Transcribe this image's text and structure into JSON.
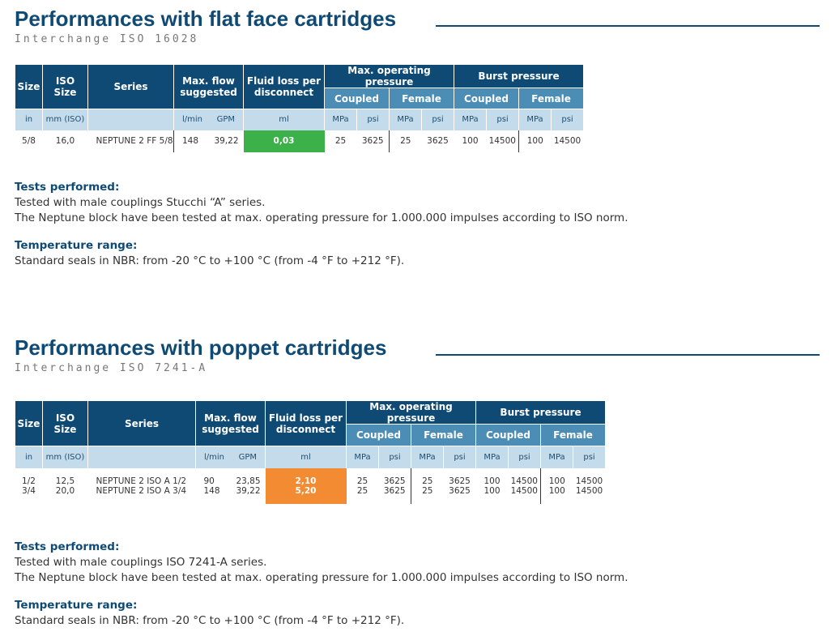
{
  "colors": {
    "brand": "#0e4a74",
    "subheader": "#4b8db5",
    "unit_row": "#c4dbeb",
    "green": "#3cb14a",
    "orange": "#f28b32"
  },
  "headers": {
    "size": "Size",
    "iso_size": "ISO Size",
    "series": "Series",
    "max_flow": "Max. flow suggested",
    "fluid_loss": "Fluid loss per disconnect",
    "max_op": "Max. operating pressure",
    "burst": "Burst pressure",
    "coupled": "Coupled",
    "female": "Female"
  },
  "units": {
    "in": "in",
    "mm": "mm (ISO)",
    "lmin": "l/min",
    "gpm": "GPM",
    "ml": "ml",
    "mpa": "MPa",
    "psi": "psi"
  },
  "section1": {
    "title": "Performances with flat face cartridges",
    "subtitle": "Interchange ISO 16028",
    "rows": [
      {
        "size": "5/8",
        "iso": "16,0",
        "series": "NEPTUNE 2 FF 5/8",
        "lmin": "148",
        "gpm": "39,22",
        "fluid": "0,03",
        "op_c_mpa": "25",
        "op_c_psi": "3625",
        "op_f_mpa": "25",
        "op_f_psi": "3625",
        "b_c_mpa": "100",
        "b_c_psi": "14500",
        "b_f_mpa": "100",
        "b_f_psi": "14500"
      }
    ],
    "tests_heading": "Tests performed:",
    "tests_line1": "Tested with male couplings Stucchi “A” series.",
    "tests_line2": "The Neptune block have been tested at max. operating pressure for 1.000.000 impulses according to ISO norm.",
    "temp_heading": "Temperature range:",
    "temp_line": "Standard seals in NBR: from -20 °C to +100 °C (from -4 °F to +212 °F)."
  },
  "section2": {
    "title": "Performances with poppet cartridges",
    "subtitle": "Interchange ISO 7241-A",
    "rows": [
      {
        "size": "1/2",
        "iso": "12,5",
        "series": "NEPTUNE 2 ISO A 1/2",
        "lmin": "90",
        "gpm": "23,85",
        "fluid": "2,10",
        "op_c_mpa": "25",
        "op_c_psi": "3625",
        "op_f_mpa": "25",
        "op_f_psi": "3625",
        "b_c_mpa": "100",
        "b_c_psi": "14500",
        "b_f_mpa": "100",
        "b_f_psi": "14500"
      },
      {
        "size": "3/4",
        "iso": "20,0",
        "series": "NEPTUNE 2 ISO A 3/4",
        "lmin": "148",
        "gpm": "39,22",
        "fluid": "5,20",
        "op_c_mpa": "25",
        "op_c_psi": "3625",
        "op_f_mpa": "25",
        "op_f_psi": "3625",
        "b_c_mpa": "100",
        "b_c_psi": "14500",
        "b_f_mpa": "100",
        "b_f_psi": "14500"
      }
    ],
    "tests_heading": "Tests performed:",
    "tests_line1": "Tested with male couplings ISO 7241-A series.",
    "tests_line2": "The Neptune block have been tested at max. operating pressure for 1.000.000 impulses according to ISO norm.",
    "temp_heading": "Temperature range:",
    "temp_line": "Standard seals in NBR: from -20 °C to +100 °C (from -4 °F to +212 °F)."
  }
}
